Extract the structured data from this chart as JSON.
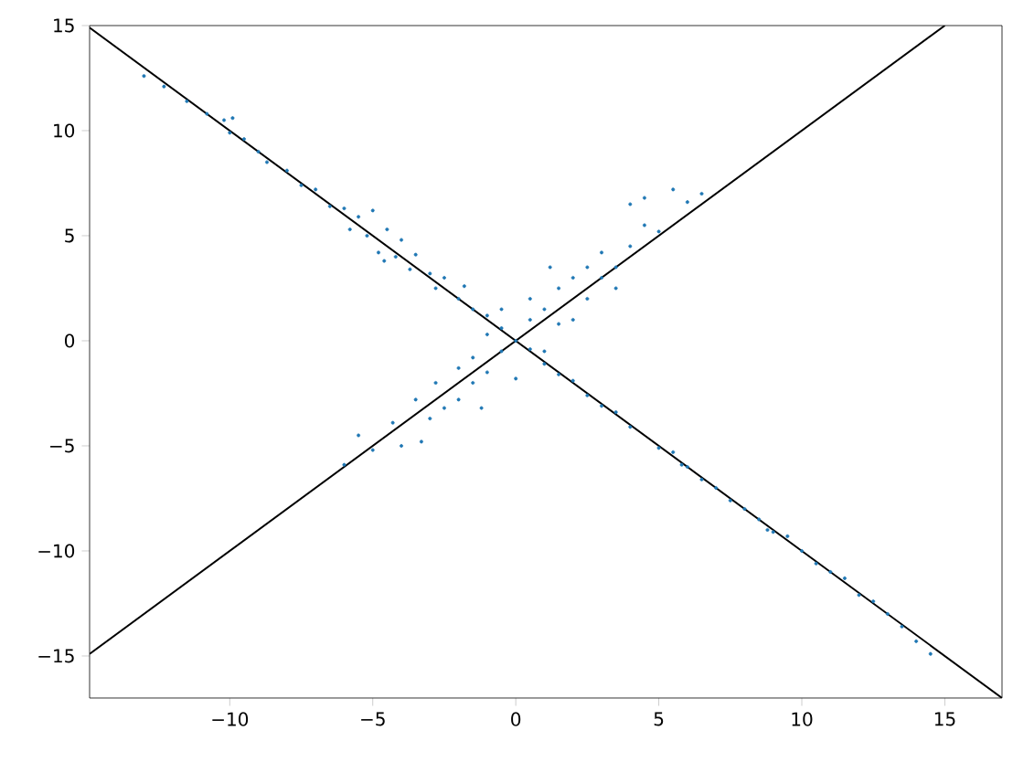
{
  "chart_data": {
    "type": "scatter",
    "xlim": [
      -14.9,
      17
    ],
    "ylim": [
      -17,
      15
    ],
    "xticks": [
      {
        "value": -10,
        "label": "−10"
      },
      {
        "value": -5,
        "label": "−5"
      },
      0,
      5,
      10,
      15
    ],
    "yticks": [
      {
        "value": -15,
        "label": "−15"
      },
      {
        "value": -10,
        "label": "−10"
      },
      {
        "value": -5,
        "label": "−5"
      },
      0,
      5,
      10,
      15
    ],
    "series": [
      {
        "marker": "circle",
        "color": "#1f77b4",
        "x": [
          -13.0,
          -12.3,
          -11.5,
          -10.8,
          -10.2,
          -10.0,
          -9.5,
          -9.0,
          -8.7,
          -8.0,
          -7.5,
          -7.0,
          -6.5,
          -6.0,
          -5.5,
          -5.2,
          -5.0,
          -4.8,
          -4.5,
          -4.2,
          -4.0,
          -3.7,
          -3.5,
          -3.0,
          -2.8,
          -2.5,
          -2.0,
          -1.8,
          -1.5,
          -1.0,
          -0.5,
          0.5,
          1.0,
          1.5,
          2.0,
          2.5,
          3.0,
          3.5,
          4.0,
          5.0,
          5.5,
          6.0,
          6.5,
          7.0,
          7.5,
          8.0,
          8.5,
          9.0,
          9.5,
          10.0,
          10.5,
          11.0,
          11.5,
          12.0,
          12.5,
          13.0,
          13.5,
          14.0,
          14.5,
          5.8,
          8.8,
          -9.9,
          -4.6,
          -5.8,
          -5.5,
          -5.0,
          -4.3,
          -4.0,
          -3.5,
          -3.0,
          -2.8,
          -2.5,
          -2.0,
          -2.0,
          -1.5,
          -1.5,
          -1.0,
          -1.0,
          -0.5,
          -0.5,
          0,
          0,
          0.5,
          0.5,
          1.0,
          1.0,
          1.5,
          1.5,
          2.0,
          2.0,
          2.5,
          2.5,
          3.0,
          3.0,
          3.5,
          3.5,
          4.0,
          4.5,
          4.5,
          5.0,
          5.5,
          6.0,
          6.5,
          4.0,
          -6.0,
          -3.3,
          1.2,
          -1.2
        ],
        "values": [
          12.6,
          12.1,
          11.4,
          10.8,
          10.5,
          9.9,
          9.6,
          9.0,
          8.5,
          8.1,
          7.4,
          7.2,
          6.4,
          6.3,
          5.9,
          5.0,
          6.2,
          4.2,
          5.3,
          4.0,
          4.8,
          3.4,
          4.1,
          3.2,
          2.5,
          3.0,
          2.0,
          2.6,
          1.5,
          1.2,
          0.6,
          -0.4,
          -1.1,
          -1.6,
          -1.9,
          -2.6,
          -3.1,
          -3.4,
          -4.1,
          -5.1,
          -5.3,
          -6.0,
          -6.6,
          -7.0,
          -7.6,
          -8.0,
          -8.5,
          -9.1,
          -9.3,
          -10.0,
          -10.6,
          -11.0,
          -11.3,
          -12.1,
          -12.4,
          -13.0,
          -13.6,
          -14.3,
          -14.9,
          -5.9,
          -9.0,
          10.6,
          3.8,
          5.3,
          -4.5,
          -5.2,
          -3.9,
          -5.0,
          -2.8,
          -3.7,
          -2.0,
          -3.2,
          -1.3,
          -2.8,
          -0.8,
          -2.0,
          0.3,
          -1.5,
          -0.5,
          1.5,
          0,
          -1.8,
          1.0,
          2.0,
          1.5,
          -0.5,
          2.5,
          0.8,
          3.0,
          1.0,
          2.0,
          3.5,
          3.0,
          4.2,
          3.5,
          2.5,
          4.5,
          5.5,
          6.8,
          5.2,
          7.2,
          6.6,
          7.0,
          6.5,
          -5.9,
          -4.8,
          3.5,
          -3.2
        ]
      },
      {
        "type": "line",
        "marker": "none",
        "color": "#000000",
        "x": [
          -14.9,
          15
        ],
        "values": [
          -14.9,
          15
        ]
      },
      {
        "type": "line",
        "marker": "none",
        "color": "#000000",
        "x": [
          -14.9,
          17
        ],
        "values": [
          14.9,
          -17
        ]
      }
    ]
  }
}
